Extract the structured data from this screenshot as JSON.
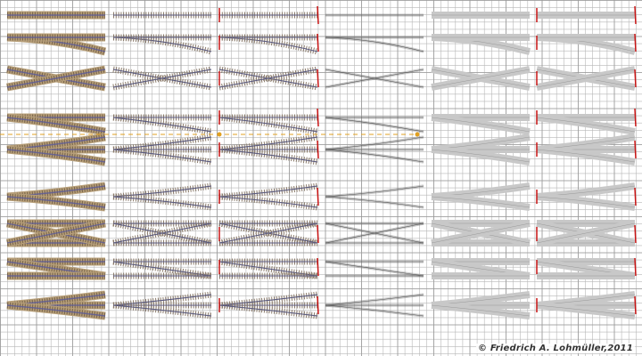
{
  "credit": "© Friedrich A. Lohmüller,2011",
  "colors": {
    "background": "#ffffff",
    "grid": "#b7b7b7",
    "ballast": "#b8a07a",
    "rail": "#5a5a5a",
    "sleeper_dark": "#4a3a2a",
    "crossing_blue": "#5a5a9a",
    "gray_fill": "#c8c8c8",
    "red_marker": "#c81414",
    "dash": "#e0a020"
  },
  "columns": [
    {
      "style": "textured"
    },
    {
      "style": "sleepers"
    },
    {
      "style": "sleepers-marked"
    },
    {
      "style": "wire"
    },
    {
      "style": "silhouette"
    },
    {
      "style": "silhouette-marked"
    }
  ],
  "rows": [
    {
      "kind": "straight"
    },
    {
      "kind": "curve"
    },
    {
      "kind": "crossing"
    },
    {
      "kind": "turnout"
    },
    {
      "kind": "double-turnout"
    },
    {
      "kind": "y-turnout"
    },
    {
      "kind": "double-crossing"
    },
    {
      "kind": "turnout-pair"
    },
    {
      "kind": "three-way"
    }
  ]
}
